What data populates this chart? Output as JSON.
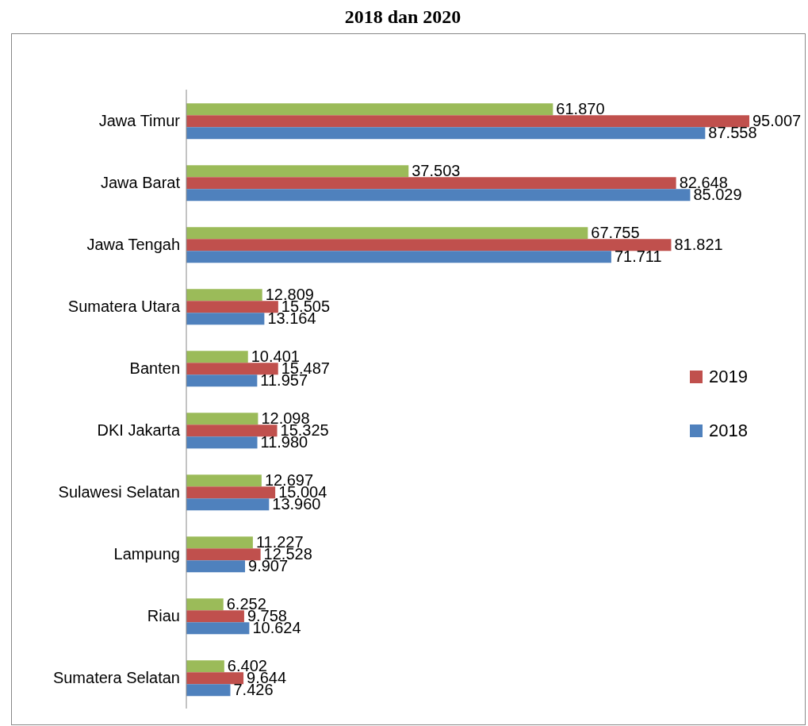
{
  "chart_data": {
    "type": "bar",
    "orientation": "horizontal",
    "title": "2018 dan 2020",
    "categories": [
      "Jawa Timur",
      "Jawa Barat",
      "Jawa Tengah",
      "Sumatera Utara",
      "Banten",
      "DKI Jakarta",
      "Sulawesi Selatan",
      "Lampung",
      "Riau",
      "Sumatera Selatan"
    ],
    "series": [
      {
        "color": "#9bbb59",
        "values": [
          61.87,
          37.503,
          67.755,
          12.809,
          10.401,
          12.098,
          12.697,
          11.227,
          6.252,
          6.402
        ],
        "value_labels": [
          "61.870",
          "37.503",
          "67.755",
          "12.809",
          "10.401",
          "12.098",
          "12.697",
          "11.227",
          "6.252",
          "6.402"
        ]
      },
      {
        "name": "2019",
        "color": "#c0504d",
        "values": [
          95.007,
          82.648,
          81.821,
          15.505,
          15.487,
          15.325,
          15.004,
          12.528,
          9.758,
          9.644
        ],
        "value_labels": [
          "95.007",
          "82.648",
          "81.821",
          "15.505",
          "15.487",
          "15.325",
          "15.004",
          "12.528",
          "9.758",
          "9.644"
        ]
      },
      {
        "name": "2018",
        "color": "#4f81bd",
        "values": [
          87.558,
          85.029,
          71.711,
          13.164,
          11.957,
          11.98,
          13.96,
          9.907,
          10.624,
          7.426
        ],
        "value_labels": [
          "87.558",
          "85.029",
          "71.711",
          "13.164",
          "11.957",
          "11.980",
          "13.960",
          "9.907",
          "10.624",
          "7.426"
        ]
      }
    ],
    "legend": "right"
  }
}
